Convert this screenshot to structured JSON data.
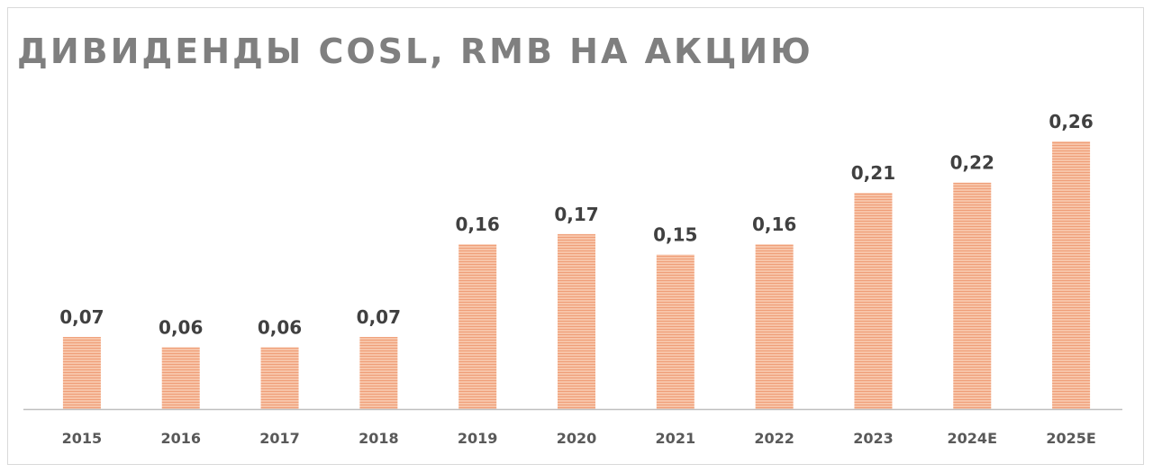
{
  "title": "ДИВИДЕНДЫ COSL, RMB НА АКЦИЮ",
  "colors": {
    "bar_fill": "#f7c4a8",
    "bar_stripe": "#ef9e78",
    "axis": "#bfbfbf",
    "title": "#7f7f7f",
    "label": "#404040"
  },
  "chart_data": {
    "type": "bar",
    "title": "ДИВИДЕНДЫ COSL, RMB НА АКЦИЮ",
    "xlabel": "",
    "ylabel": "",
    "categories": [
      "2015",
      "2016",
      "2017",
      "2018",
      "2019",
      "2020",
      "2021",
      "2022",
      "2023",
      "2024E",
      "2025E"
    ],
    "values": [
      0.07,
      0.06,
      0.06,
      0.07,
      0.16,
      0.17,
      0.15,
      0.16,
      0.21,
      0.22,
      0.26
    ],
    "data_labels": [
      "0,07",
      "0,06",
      "0,06",
      "0,07",
      "0,16",
      "0,17",
      "0,15",
      "0,16",
      "0,21",
      "0,22",
      "0,26"
    ],
    "ylim": [
      0,
      0.26
    ],
    "grid": false,
    "legend": "none"
  }
}
